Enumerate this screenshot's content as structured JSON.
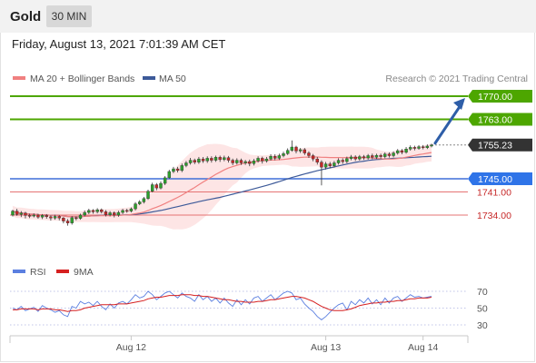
{
  "header": {
    "title": "Gold",
    "timeframe": "30 MIN",
    "datetime": "Friday, August 13, 2021 7:01:39 AM CET"
  },
  "legend": {
    "ma20_label": "MA 20 + Bollinger Bands",
    "ma50_label": "MA 50",
    "credit": "Research © 2021 Trading Central"
  },
  "colors": {
    "candle_up": "#2ca02c",
    "candle_down": "#c62828",
    "ma20": "#f08080",
    "ma50": "#3d5a99",
    "band_fill": "#fde0e0",
    "resistance": "#4da600",
    "support_blue": "#3f6fd8",
    "support_red": "#e57373",
    "current": "#333333",
    "rsi": "#5b7fe0",
    "rsi_ma": "#d62020",
    "arrow": "#2e5ea8"
  },
  "chart_data": [
    {
      "type": "candlestick",
      "price_levels": [
        {
          "value": 1770.0,
          "label": "1770.00",
          "kind": "resistance"
        },
        {
          "value": 1763.0,
          "label": "1763.00",
          "kind": "resistance"
        },
        {
          "value": 1755.23,
          "label": "1755.23",
          "kind": "current"
        },
        {
          "value": 1745.0,
          "label": "1745.00",
          "kind": "pivot"
        },
        {
          "value": 1741.0,
          "label": "1741.00",
          "kind": "support"
        },
        {
          "value": 1734.0,
          "label": "1734.00",
          "kind": "support"
        }
      ],
      "x_ticks": [
        "Aug 12",
        "Aug 13",
        "Aug 14"
      ],
      "x_tick_index": [
        28,
        74,
        97
      ],
      "candles": [
        [
          1734.0,
          1735.2,
          1733.6,
          1735.6
        ],
        [
          1735.2,
          1734.2,
          1733.8,
          1735.9
        ],
        [
          1734.2,
          1734.6,
          1733.4,
          1735.2
        ],
        [
          1734.6,
          1733.9,
          1733.0,
          1735.0
        ],
        [
          1733.9,
          1733.7,
          1733.1,
          1734.4
        ],
        [
          1733.7,
          1734.0,
          1733.3,
          1734.5
        ],
        [
          1734.0,
          1733.4,
          1732.9,
          1734.4
        ],
        [
          1733.4,
          1733.9,
          1732.8,
          1734.3
        ],
        [
          1733.9,
          1733.5,
          1732.9,
          1734.3
        ],
        [
          1733.5,
          1733.1,
          1732.3,
          1733.9
        ],
        [
          1733.1,
          1733.6,
          1732.6,
          1734.1
        ],
        [
          1733.6,
          1733.1,
          1732.4,
          1734.0
        ],
        [
          1733.1,
          1732.2,
          1731.5,
          1733.4
        ],
        [
          1732.2,
          1731.6,
          1730.8,
          1732.8
        ],
        [
          1731.6,
          1733.2,
          1731.1,
          1733.7
        ],
        [
          1733.2,
          1733.0,
          1732.4,
          1733.6
        ],
        [
          1733.0,
          1734.0,
          1732.6,
          1734.4
        ],
        [
          1734.0,
          1734.8,
          1733.6,
          1735.4
        ],
        [
          1734.8,
          1735.4,
          1734.3,
          1735.9
        ],
        [
          1735.4,
          1735.0,
          1734.4,
          1735.8
        ],
        [
          1735.0,
          1735.6,
          1734.5,
          1736.1
        ],
        [
          1735.6,
          1735.0,
          1734.5,
          1736.0
        ],
        [
          1735.0,
          1734.1,
          1733.6,
          1735.5
        ],
        [
          1734.1,
          1734.7,
          1733.6,
          1735.2
        ],
        [
          1734.7,
          1734.0,
          1733.3,
          1735.1
        ],
        [
          1734.0,
          1734.8,
          1733.5,
          1735.3
        ],
        [
          1734.8,
          1735.4,
          1734.3,
          1735.9
        ],
        [
          1735.4,
          1735.2,
          1734.7,
          1735.9
        ],
        [
          1735.2,
          1735.9,
          1734.8,
          1736.3
        ],
        [
          1735.9,
          1737.4,
          1735.4,
          1737.9
        ],
        [
          1737.4,
          1738.0,
          1737.0,
          1738.5
        ],
        [
          1738.0,
          1739.0,
          1737.5,
          1739.5
        ],
        [
          1739.0,
          1741.2,
          1738.6,
          1741.7
        ],
        [
          1741.2,
          1743.2,
          1740.9,
          1743.8
        ],
        [
          1743.2,
          1742.2,
          1741.5,
          1743.7
        ],
        [
          1742.2,
          1743.6,
          1741.8,
          1744.2
        ],
        [
          1743.6,
          1745.3,
          1743.1,
          1745.8
        ],
        [
          1745.3,
          1747.2,
          1745.0,
          1747.7
        ],
        [
          1747.2,
          1748.0,
          1746.7,
          1748.6
        ],
        [
          1748.0,
          1747.5,
          1746.9,
          1748.6
        ],
        [
          1747.5,
          1749.0,
          1747.0,
          1749.6
        ],
        [
          1749.0,
          1749.8,
          1748.5,
          1750.4
        ],
        [
          1749.8,
          1750.6,
          1749.3,
          1751.3
        ],
        [
          1750.6,
          1750.0,
          1749.4,
          1751.1
        ],
        [
          1750.0,
          1751.0,
          1749.5,
          1751.6
        ],
        [
          1751.0,
          1750.4,
          1749.8,
          1751.6
        ],
        [
          1750.4,
          1751.2,
          1749.8,
          1751.8
        ],
        [
          1751.2,
          1750.6,
          1749.9,
          1751.8
        ],
        [
          1750.6,
          1751.5,
          1750.1,
          1752.0
        ],
        [
          1751.5,
          1750.8,
          1750.1,
          1752.0
        ],
        [
          1750.8,
          1751.4,
          1750.3,
          1752.0
        ],
        [
          1751.4,
          1750.6,
          1749.9,
          1751.9
        ],
        [
          1750.6,
          1749.8,
          1749.1,
          1751.1
        ],
        [
          1749.8,
          1750.6,
          1749.3,
          1751.2
        ],
        [
          1750.6,
          1749.8,
          1749.2,
          1751.1
        ],
        [
          1749.8,
          1750.2,
          1749.2,
          1750.7
        ],
        [
          1750.2,
          1749.6,
          1748.8,
          1750.8
        ],
        [
          1749.6,
          1750.4,
          1749.0,
          1751.0
        ],
        [
          1750.4,
          1751.2,
          1749.9,
          1751.8
        ],
        [
          1751.2,
          1750.4,
          1749.6,
          1751.7
        ],
        [
          1750.4,
          1751.0,
          1749.9,
          1751.6
        ],
        [
          1751.0,
          1751.8,
          1750.5,
          1752.4
        ],
        [
          1751.8,
          1751.2,
          1750.6,
          1752.4
        ],
        [
          1751.2,
          1752.0,
          1750.7,
          1752.6
        ],
        [
          1752.0,
          1752.6,
          1751.5,
          1753.2
        ],
        [
          1752.6,
          1753.6,
          1752.2,
          1754.2
        ],
        [
          1753.6,
          1754.6,
          1753.2,
          1756.6
        ],
        [
          1754.6,
          1753.4,
          1752.7,
          1755.0
        ],
        [
          1753.4,
          1753.8,
          1752.8,
          1754.3
        ],
        [
          1753.8,
          1752.8,
          1752.2,
          1754.3
        ],
        [
          1752.8,
          1752.0,
          1751.3,
          1753.3
        ],
        [
          1752.0,
          1751.0,
          1750.3,
          1752.5
        ],
        [
          1751.0,
          1750.0,
          1749.3,
          1751.6
        ],
        [
          1750.0,
          1748.5,
          1743.0,
          1750.6
        ],
        [
          1748.5,
          1749.5,
          1747.8,
          1750.1
        ],
        [
          1749.5,
          1748.9,
          1748.2,
          1750.1
        ],
        [
          1748.9,
          1749.8,
          1748.4,
          1750.4
        ],
        [
          1749.8,
          1750.6,
          1749.3,
          1751.2
        ],
        [
          1750.6,
          1750.2,
          1749.5,
          1751.2
        ],
        [
          1750.2,
          1751.1,
          1749.7,
          1751.7
        ],
        [
          1751.1,
          1751.6,
          1750.6,
          1752.2
        ],
        [
          1751.6,
          1751.0,
          1750.4,
          1752.1
        ],
        [
          1751.0,
          1751.7,
          1750.5,
          1752.2
        ],
        [
          1751.7,
          1751.3,
          1750.7,
          1752.2
        ],
        [
          1751.3,
          1752.0,
          1750.8,
          1752.5
        ],
        [
          1752.0,
          1751.5,
          1750.9,
          1752.6
        ],
        [
          1751.5,
          1752.1,
          1751.0,
          1752.6
        ],
        [
          1752.1,
          1751.7,
          1751.1,
          1752.6
        ],
        [
          1751.7,
          1752.5,
          1751.2,
          1753.0
        ],
        [
          1752.5,
          1752.0,
          1751.4,
          1753.0
        ],
        [
          1752.0,
          1752.8,
          1751.5,
          1753.3
        ],
        [
          1752.8,
          1753.5,
          1752.3,
          1754.0
        ],
        [
          1753.5,
          1753.0,
          1752.4,
          1754.0
        ],
        [
          1753.0,
          1754.0,
          1752.6,
          1754.6
        ],
        [
          1754.0,
          1754.5,
          1753.5,
          1755.1
        ],
        [
          1754.5,
          1754.2,
          1753.6,
          1755.0
        ],
        [
          1754.2,
          1754.7,
          1753.8,
          1755.2
        ],
        [
          1754.7,
          1754.4,
          1753.9,
          1755.2
        ],
        [
          1754.4,
          1754.9,
          1754.0,
          1755.4
        ],
        [
          1754.9,
          1755.23,
          1754.5,
          1755.6
        ]
      ]
    },
    {
      "type": "line",
      "title": "RSI",
      "series_labels": [
        "RSI",
        "9MA"
      ],
      "y_ticks": [
        70,
        50,
        30
      ],
      "ylim": [
        20,
        80
      ],
      "rsi": [
        50,
        48,
        52,
        47,
        49,
        51,
        46,
        53,
        50,
        48,
        45,
        47,
        42,
        40,
        52,
        50,
        58,
        55,
        57,
        53,
        58,
        52,
        48,
        55,
        50,
        56,
        58,
        55,
        60,
        66,
        62,
        64,
        70,
        66,
        60,
        64,
        68,
        70,
        66,
        62,
        68,
        64,
        62,
        58,
        66,
        60,
        64,
        58,
        62,
        56,
        62,
        56,
        52,
        60,
        54,
        60,
        55,
        62,
        64,
        58,
        62,
        66,
        60,
        64,
        68,
        70,
        68,
        60,
        62,
        55,
        50,
        46,
        40,
        36,
        40,
        45,
        50,
        54,
        56,
        48,
        58,
        54,
        60,
        56,
        62,
        55,
        60,
        54,
        62,
        56,
        62,
        64,
        58,
        62,
        66,
        63,
        64,
        62,
        63,
        64
      ],
      "rsi_ma": [
        48,
        48,
        49,
        49,
        49,
        49,
        48,
        49,
        49,
        49,
        48,
        48,
        47,
        46,
        47,
        47,
        48,
        50,
        51,
        52,
        53,
        54,
        54,
        54,
        54,
        55,
        55,
        55,
        56,
        57,
        58,
        59,
        61,
        62,
        63,
        63,
        64,
        65,
        65,
        65,
        66,
        66,
        66,
        65,
        65,
        64,
        64,
        63,
        62,
        61,
        60,
        60,
        59,
        58,
        58,
        57,
        57,
        57,
        58,
        58,
        59,
        60,
        60,
        61,
        62,
        63,
        64,
        64,
        63,
        62,
        60,
        58,
        55,
        52,
        50,
        48,
        47,
        47,
        47,
        48,
        49,
        51,
        53,
        54,
        55,
        56,
        56,
        57,
        57,
        58,
        58,
        59,
        59,
        60,
        61,
        61,
        62,
        62,
        62,
        63
      ]
    }
  ]
}
